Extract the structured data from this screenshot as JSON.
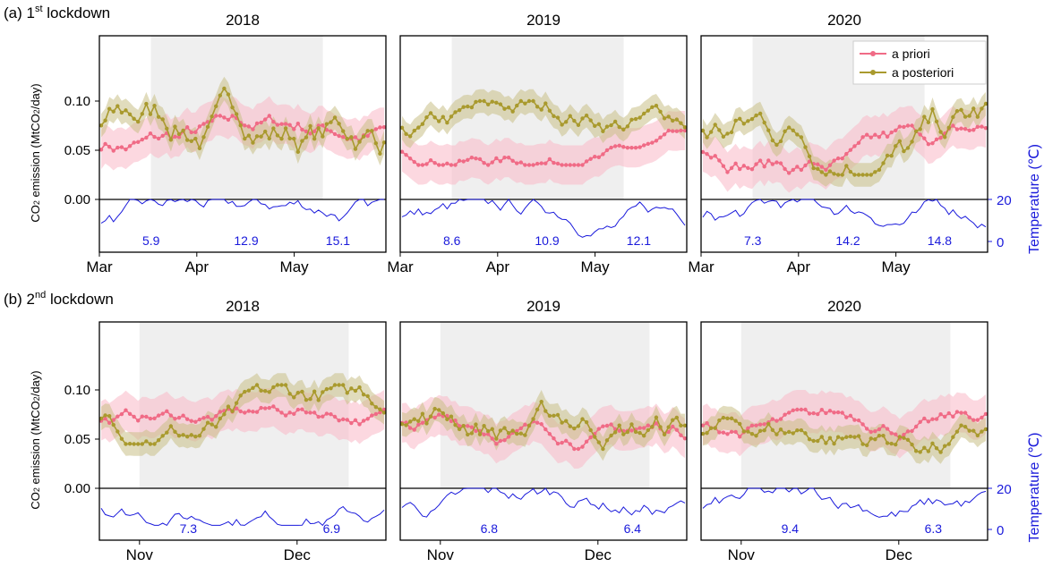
{
  "figure": {
    "colors": {
      "prior": "#f06b86",
      "prior_band": "#f9b8c6",
      "posterior": "#a99a2e",
      "posterior_band": "#c9bf86",
      "lockdown_shade": "#efefef",
      "temperature": "#1a1adb",
      "axis": "#000000"
    },
    "y_axis_label_parts": {
      "main": "CO",
      "sub": "2",
      "rest": " emission (MtCO",
      "sub2": "2",
      "end": "/day)"
    },
    "right_axis_label": "Temperature (℃)",
    "legend": {
      "prior": "a priori",
      "posterior": "a posteriori",
      "position": "top-right of 2020 panel (row a)"
    }
  },
  "chart_data": [
    {
      "row": "a",
      "row_title_prefix": "(a) 1",
      "row_title_sup": "st",
      "row_title_suffix": " lockdown",
      "type": "line",
      "ylim_emission": [
        0,
        0.14
      ],
      "yticks_emission": [
        "0.00",
        "0.05",
        "0.10"
      ],
      "yticks_temperature": [
        "0",
        "20"
      ],
      "x_tick_labels": [
        "Mar",
        "Apr",
        "May"
      ],
      "panels": [
        {
          "title": "2018",
          "lockdown_period": [
            "Mar 17",
            "May 11"
          ],
          "temperature_labels": [
            "5.9",
            "12.9",
            "15.1"
          ],
          "prior_range": [
            0.03,
            0.085
          ],
          "posterior_range": [
            0.03,
            0.12
          ]
        },
        {
          "title": "2019",
          "lockdown_period": [
            "Mar 17",
            "May 11"
          ],
          "temperature_labels": [
            "8.6",
            "10.9",
            "12.1"
          ],
          "prior_range": [
            0.035,
            0.07
          ],
          "posterior_range": [
            0.05,
            0.1
          ]
        },
        {
          "title": "2020",
          "lockdown_period": [
            "Mar 17",
            "May 11"
          ],
          "temperature_labels": [
            "7.3",
            "14.2",
            "14.8"
          ],
          "prior_range": [
            0.025,
            0.075
          ],
          "posterior_range": [
            0.025,
            0.115
          ]
        }
      ]
    },
    {
      "row": "b",
      "row_title_prefix": "(b) 2",
      "row_title_sup": "nd",
      "row_title_suffix": " lockdown",
      "type": "line",
      "ylim_emission": [
        0,
        0.14
      ],
      "yticks_emission": [
        "0.00",
        "0.05",
        "0.10"
      ],
      "yticks_temperature": [
        "0",
        "20"
      ],
      "x_tick_labels": [
        "Nov",
        "Dec"
      ],
      "panels": [
        {
          "title": "2018",
          "lockdown_period": [
            "Oct 30",
            "Dec 15"
          ],
          "temperature_labels": [
            "7.3",
            "6.9"
          ],
          "prior_range": [
            0.05,
            0.085
          ],
          "posterior_range": [
            0.045,
            0.105
          ]
        },
        {
          "title": "2019",
          "lockdown_period": [
            "Oct 30",
            "Dec 15"
          ],
          "temperature_labels": [
            "6.8",
            "6.4"
          ],
          "prior_range": [
            0.04,
            0.085
          ],
          "posterior_range": [
            0.04,
            0.11
          ]
        },
        {
          "title": "2020",
          "lockdown_period": [
            "Oct 30",
            "Dec 15"
          ],
          "temperature_labels": [
            "9.4",
            "6.3"
          ],
          "prior_range": [
            0.04,
            0.08
          ],
          "posterior_range": [
            0.03,
            0.085
          ]
        }
      ]
    }
  ]
}
